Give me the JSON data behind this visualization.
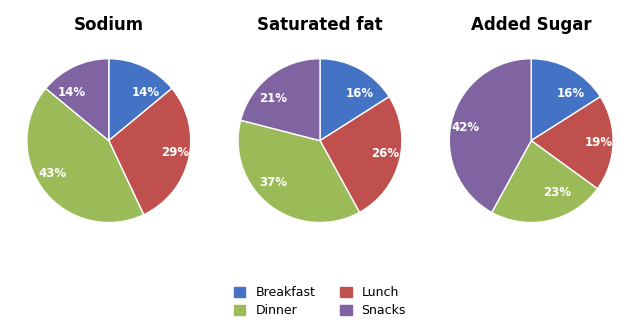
{
  "charts": [
    {
      "title": "Sodium",
      "values": [
        14,
        29,
        43,
        14
      ],
      "labels": [
        "14%",
        "29%",
        "43%",
        "14%"
      ],
      "startangle": 90,
      "order": [
        "Breakfast",
        "Lunch",
        "Dinner",
        "Snacks"
      ]
    },
    {
      "title": "Saturated fat",
      "values": [
        16,
        26,
        37,
        21
      ],
      "labels": [
        "16%",
        "26%",
        "37%",
        "21%"
      ],
      "startangle": 90,
      "order": [
        "Breakfast",
        "Lunch",
        "Dinner",
        "Snacks"
      ]
    },
    {
      "title": "Added Sugar",
      "values": [
        16,
        19,
        23,
        42
      ],
      "labels": [
        "16%",
        "19%",
        "23%",
        "42%"
      ],
      "startangle": 90,
      "order": [
        "Breakfast",
        "Lunch",
        "Dinner",
        "Snacks"
      ]
    }
  ],
  "colors": [
    "#4472C4",
    "#C0504D",
    "#9BBB59",
    "#8064A2"
  ],
  "legend_labels": [
    "Breakfast",
    "Dinner",
    "Lunch",
    "Snacks"
  ],
  "legend_colors": [
    "#4472C4",
    "#9BBB59",
    "#C0504D",
    "#8064A2"
  ],
  "background_color": "#FFFFFF",
  "title_fontsize": 12,
  "label_fontsize": 8.5,
  "legend_fontsize": 9
}
